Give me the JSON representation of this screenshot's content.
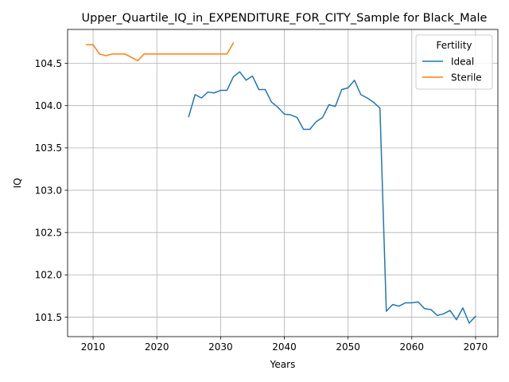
{
  "chart_data": {
    "type": "line",
    "title": "Upper_Quartile_IQ_in_EXPENDITURE_FOR_CITY_Sample for Black_Male",
    "xlabel": "Years",
    "ylabel": "IQ",
    "xlim": [
      2006,
      2073.5
    ],
    "ylim": [
      101.27,
      104.9
    ],
    "xticks": [
      2010,
      2020,
      2030,
      2040,
      2050,
      2060,
      2070
    ],
    "yticks": [
      101.5,
      102.0,
      102.5,
      103.0,
      103.5,
      104.0,
      104.5
    ],
    "ytick_labels": [
      "101.5",
      "102.0",
      "102.5",
      "103.0",
      "103.5",
      "104.0",
      "104.5"
    ],
    "grid": true,
    "legend": {
      "title": "Fertility",
      "placement": "top-right"
    },
    "series": [
      {
        "name": "Ideal",
        "color": "#1f77b4",
        "x": [
          2025,
          2026,
          2027,
          2028,
          2029,
          2030,
          2031,
          2032,
          2033,
          2034,
          2035,
          2036,
          2037,
          2038,
          2039,
          2040,
          2041,
          2042,
          2043,
          2044,
          2045,
          2046,
          2047,
          2048,
          2049,
          2050,
          2051,
          2052,
          2053,
          2054,
          2055,
          2056,
          2057,
          2058,
          2059,
          2060,
          2061,
          2062,
          2063,
          2064,
          2065,
          2066,
          2067,
          2068,
          2069,
          2070
        ],
        "y": [
          103.87,
          104.13,
          104.09,
          104.16,
          104.15,
          104.18,
          104.18,
          104.34,
          104.4,
          104.3,
          104.35,
          104.19,
          104.19,
          104.04,
          103.98,
          103.9,
          103.89,
          103.86,
          103.72,
          103.72,
          103.81,
          103.86,
          104.01,
          103.99,
          104.19,
          104.21,
          104.3,
          104.13,
          104.09,
          104.04,
          103.97,
          101.57,
          101.65,
          101.63,
          101.67,
          101.67,
          101.68,
          101.6,
          101.59,
          101.52,
          101.54,
          101.58,
          101.47,
          101.61,
          101.43,
          101.51
        ]
      },
      {
        "name": "Sterile",
        "color": "#ff7f0e",
        "x": [
          2009,
          2010,
          2011,
          2012,
          2013,
          2014,
          2015,
          2016,
          2017,
          2018,
          2019,
          2020,
          2021,
          2022,
          2023,
          2024,
          2025,
          2026,
          2027,
          2028,
          2029,
          2030,
          2031,
          2032
        ],
        "y": [
          104.72,
          104.72,
          104.61,
          104.59,
          104.61,
          104.61,
          104.61,
          104.57,
          104.53,
          104.61,
          104.61,
          104.61,
          104.61,
          104.61,
          104.61,
          104.61,
          104.61,
          104.61,
          104.61,
          104.61,
          104.61,
          104.61,
          104.61,
          104.74
        ]
      }
    ]
  }
}
